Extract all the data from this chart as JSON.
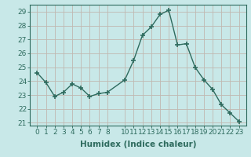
{
  "x": [
    0,
    1,
    2,
    3,
    4,
    5,
    6,
    7,
    8,
    10,
    11,
    12,
    13,
    14,
    15,
    16,
    17,
    18,
    19,
    20,
    21,
    22,
    23
  ],
  "y": [
    24.6,
    23.9,
    22.9,
    23.2,
    23.8,
    23.5,
    22.9,
    23.1,
    23.2,
    24.1,
    25.5,
    27.3,
    27.9,
    28.8,
    29.1,
    26.6,
    26.7,
    25.0,
    24.1,
    23.4,
    22.3,
    21.7,
    21.1
  ],
  "line_color": "#2e6b5e",
  "marker": "+",
  "marker_size": 4,
  "bg_color": "#c8e8e8",
  "grid_color": "#c0b8b0",
  "xlabel": "Humidex (Indice chaleur)",
  "ylim": [
    20.8,
    29.5
  ],
  "yticks": [
    21,
    22,
    23,
    24,
    25,
    26,
    27,
    28,
    29
  ],
  "xticks": [
    0,
    1,
    2,
    3,
    4,
    5,
    6,
    7,
    8,
    10,
    11,
    12,
    13,
    14,
    15,
    16,
    17,
    18,
    19,
    20,
    21,
    22,
    23
  ],
  "tick_color": "#2e6b5e",
  "label_color": "#2e6b5e",
  "spine_color": "#2e6b5e",
  "xlabel_fontsize": 7.5,
  "tick_fontsize": 6.5
}
